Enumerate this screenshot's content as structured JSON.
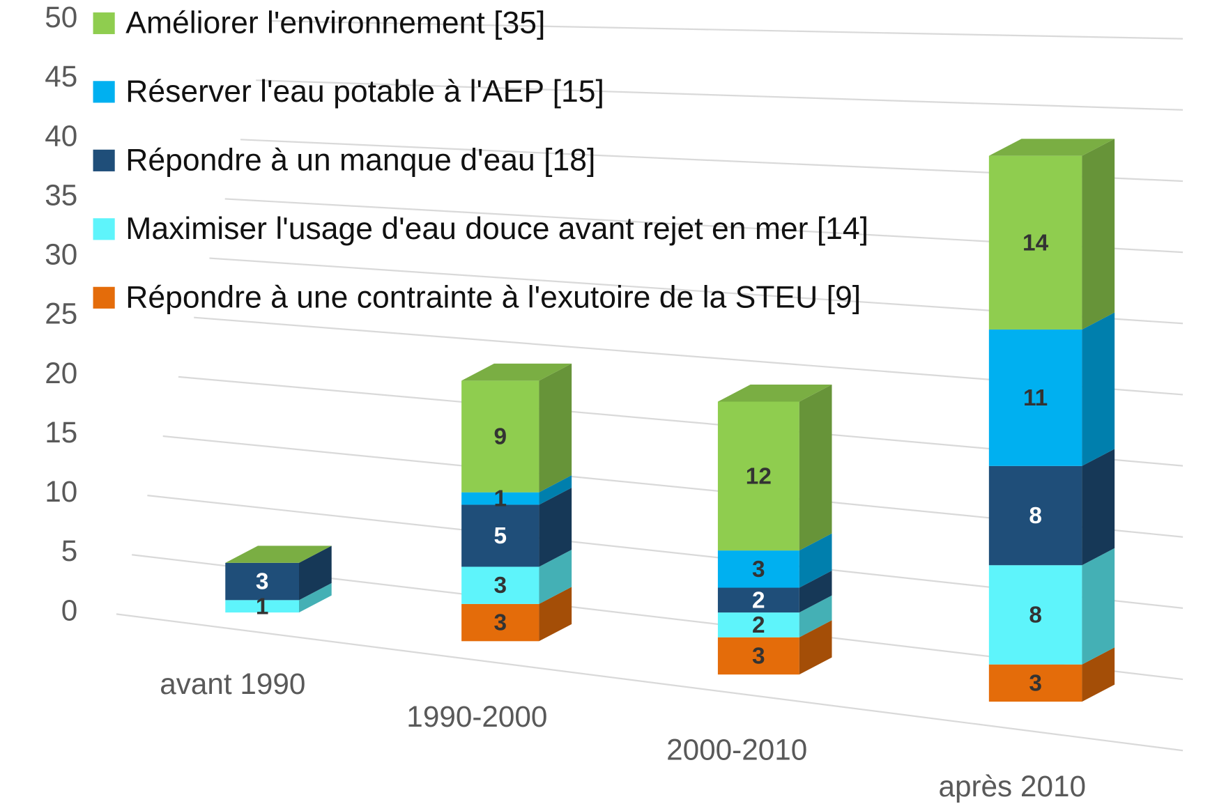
{
  "chart_data": {
    "type": "bar3d_stacked",
    "categories": [
      "avant 1990",
      "1990-2000",
      "2000-2010",
      "après 2010"
    ],
    "series": [
      {
        "name": "Répondre à une contrainte à l'exutoire de la STEU [9]",
        "color": "#e46c0a",
        "values": [
          null,
          3,
          3,
          3
        ]
      },
      {
        "name": "Maximiser l'usage d'eau douce avant rejet en mer [14]",
        "color": "#5ef4fb",
        "values": [
          1,
          3,
          2,
          8
        ]
      },
      {
        "name": "Répondre à un manque d'eau [18]",
        "color": "#1f4e79",
        "values": [
          3,
          5,
          2,
          8
        ]
      },
      {
        "name": "Réserver l'eau potable à l'AEP [15]",
        "color": "#00b0f0",
        "values": [
          null,
          1,
          3,
          11
        ]
      },
      {
        "name": "Améliorer l'environnement [35]",
        "color": "#8fcd4f",
        "values": [
          null,
          9,
          12,
          14
        ]
      }
    ],
    "ylim": [
      0,
      50
    ],
    "yticks": [
      0,
      5,
      10,
      15,
      20,
      25,
      30,
      35,
      40,
      45,
      50
    ],
    "grid": true,
    "legend": "top-left"
  }
}
